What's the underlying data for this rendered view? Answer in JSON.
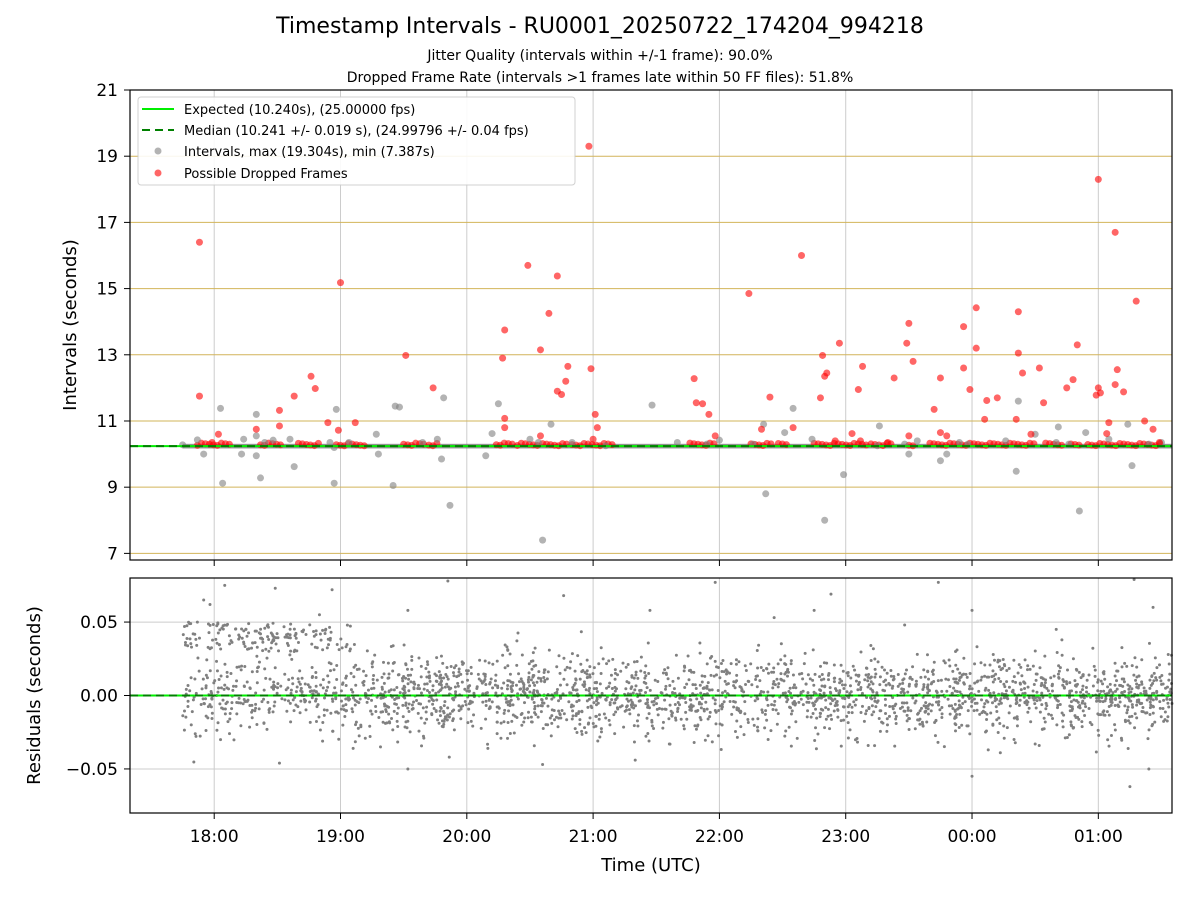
{
  "title": "Timestamp Intervals - RU0001_20250722_174204_994218",
  "subtitle_1": "Jitter Quality (intervals within +/-1 frame): 90.0%",
  "subtitle_2": "Dropped Frame Rate (intervals >1 frames late within 50 FF files): 51.8%",
  "colors": {
    "expected": "#00ee00",
    "median": "#008000",
    "intervals": "#808080",
    "dropped": "#ff0000",
    "gold_grid": "#d2b45a",
    "grid": "#cccccc"
  },
  "chart_data": [
    {
      "type": "scatter",
      "ylabel": "Intervals (seconds)",
      "ylim": [
        6.8,
        21
      ],
      "y_ticks": [
        "7",
        "9",
        "11",
        "13",
        "15",
        "17",
        "19",
        "21"
      ],
      "grid": true,
      "legend_position": "top-left",
      "legend": [
        "Expected (10.240s), (25.00000 fps)",
        "Median (10.241 +/- 0.019 s), (24.99796 +/- 0.04 fps)",
        "Intervals, max (19.304s), min (7.387s)",
        "Possible Dropped Frames"
      ],
      "expected_value": 10.24,
      "median_value": 10.241,
      "series": [
        {
          "points": [
            [
              "17:45",
              10.28
            ],
            [
              "17:52",
              10.43
            ],
            [
              "17:55",
              10.0
            ],
            [
              "18:03",
              11.38
            ],
            [
              "18:04",
              9.12
            ],
            [
              "18:13",
              10.0
            ],
            [
              "18:14",
              10.45
            ],
            [
              "18:20",
              11.2
            ],
            [
              "18:20",
              10.55
            ],
            [
              "18:20",
              9.95
            ],
            [
              "18:22",
              9.28
            ],
            [
              "18:24",
              10.35
            ],
            [
              "18:28",
              10.42
            ],
            [
              "18:36",
              10.45
            ],
            [
              "18:38",
              9.62
            ],
            [
              "18:55",
              10.35
            ],
            [
              "18:57",
              9.12
            ],
            [
              "18:58",
              11.35
            ],
            [
              "18:57",
              10.2
            ],
            [
              "19:04",
              10.35
            ],
            [
              "19:17",
              10.6
            ],
            [
              "19:18",
              10.0
            ],
            [
              "19:25",
              9.05
            ],
            [
              "19:26",
              11.45
            ],
            [
              "19:28",
              11.42
            ],
            [
              "19:39",
              10.35
            ],
            [
              "19:46",
              10.45
            ],
            [
              "19:49",
              11.7
            ],
            [
              "19:48",
              9.85
            ],
            [
              "19:52",
              8.45
            ],
            [
              "20:09",
              9.95
            ],
            [
              "20:12",
              10.62
            ],
            [
              "20:15",
              11.52
            ],
            [
              "20:30",
              10.45
            ],
            [
              "20:34",
              10.35
            ],
            [
              "20:36",
              7.4
            ],
            [
              "20:40",
              10.9
            ],
            [
              "20:50",
              10.35
            ],
            [
              "21:06",
              10.25
            ],
            [
              "21:28",
              11.48
            ],
            [
              "21:40",
              10.35
            ],
            [
              "21:54",
              10.3
            ],
            [
              "22:00",
              10.42
            ],
            [
              "22:16",
              10.3
            ],
            [
              "22:21",
              10.9
            ],
            [
              "22:22",
              8.8
            ],
            [
              "22:31",
              10.65
            ],
            [
              "22:35",
              11.38
            ],
            [
              "22:44",
              10.45
            ],
            [
              "22:50",
              8.0
            ],
            [
              "22:59",
              9.38
            ],
            [
              "23:16",
              10.85
            ],
            [
              "23:15",
              10.25
            ],
            [
              "23:28",
              10.3
            ],
            [
              "23:30",
              10.0
            ],
            [
              "23:34",
              10.4
            ],
            [
              "23:45",
              9.8
            ],
            [
              "23:48",
              10.0
            ],
            [
              "23:54",
              10.35
            ],
            [
              "23:58",
              10.3
            ],
            [
              "00:16",
              10.4
            ],
            [
              "00:22",
              11.6
            ],
            [
              "00:21",
              9.48
            ],
            [
              "00:30",
              10.6
            ],
            [
              "00:40",
              10.35
            ],
            [
              "00:41",
              10.82
            ],
            [
              "00:46",
              10.3
            ],
            [
              "00:51",
              8.28
            ],
            [
              "00:54",
              10.65
            ],
            [
              "01:05",
              10.45
            ],
            [
              "01:14",
              10.9
            ],
            [
              "01:16",
              9.65
            ],
            [
              "01:24",
              10.3
            ],
            [
              "01:30",
              10.35
            ]
          ]
        },
        {
          "points": [
            [
              "17:53",
              16.4
            ],
            [
              "17:53",
              11.75
            ],
            [
              "17:59",
              10.35
            ],
            [
              "18:02",
              10.6
            ],
            [
              "18:20",
              10.75
            ],
            [
              "18:31",
              11.32
            ],
            [
              "18:31",
              10.85
            ],
            [
              "18:38",
              11.75
            ],
            [
              "18:46",
              12.35
            ],
            [
              "18:48",
              11.98
            ],
            [
              "18:54",
              10.95
            ],
            [
              "19:00",
              15.18
            ],
            [
              "18:59",
              10.72
            ],
            [
              "19:07",
              10.95
            ],
            [
              "19:31",
              12.98
            ],
            [
              "19:44",
              12.0
            ],
            [
              "20:17",
              12.9
            ],
            [
              "20:18",
              13.75
            ],
            [
              "20:18",
              11.08
            ],
            [
              "20:18",
              10.8
            ],
            [
              "20:29",
              15.7
            ],
            [
              "20:35",
              13.15
            ],
            [
              "20:35",
              10.55
            ],
            [
              "20:39",
              14.25
            ],
            [
              "20:43",
              11.9
            ],
            [
              "20:43",
              15.38
            ],
            [
              "20:45",
              11.8
            ],
            [
              "20:47",
              12.2
            ],
            [
              "20:48",
              12.65
            ],
            [
              "20:58",
              19.3
            ],
            [
              "20:59",
              12.58
            ],
            [
              "21:01",
              11.2
            ],
            [
              "21:02",
              10.8
            ],
            [
              "21:00",
              10.45
            ],
            [
              "21:48",
              12.28
            ],
            [
              "21:49",
              11.55
            ],
            [
              "21:52",
              11.52
            ],
            [
              "21:55",
              11.2
            ],
            [
              "21:58",
              10.55
            ],
            [
              "22:14",
              14.85
            ],
            [
              "22:20",
              10.75
            ],
            [
              "22:24",
              11.72
            ],
            [
              "22:35",
              10.8
            ],
            [
              "22:39",
              16.0
            ],
            [
              "22:48",
              11.7
            ],
            [
              "22:49",
              12.98
            ],
            [
              "22:50",
              12.35
            ],
            [
              "22:51",
              12.45
            ],
            [
              "22:55",
              10.4
            ],
            [
              "22:57",
              13.35
            ],
            [
              "23:03",
              10.62
            ],
            [
              "23:06",
              11.95
            ],
            [
              "23:08",
              12.65
            ],
            [
              "23:07",
              10.4
            ],
            [
              "23:20",
              10.35
            ],
            [
              "23:23",
              12.3
            ],
            [
              "23:29",
              13.35
            ],
            [
              "23:30",
              13.95
            ],
            [
              "23:32",
              12.8
            ],
            [
              "23:30",
              10.55
            ],
            [
              "23:42",
              11.35
            ],
            [
              "23:45",
              12.3
            ],
            [
              "23:45",
              10.65
            ],
            [
              "23:48",
              10.55
            ],
            [
              "23:56",
              12.6
            ],
            [
              "23:56",
              13.85
            ],
            [
              "23:59",
              11.95
            ],
            [
              "00:02",
              14.42
            ],
            [
              "00:02",
              13.2
            ],
            [
              "00:06",
              11.05
            ],
            [
              "00:07",
              11.62
            ],
            [
              "00:12",
              11.7
            ],
            [
              "00:21",
              11.05
            ],
            [
              "00:22",
              13.05
            ],
            [
              "00:22",
              14.3
            ],
            [
              "00:24",
              12.45
            ],
            [
              "00:28",
              10.6
            ],
            [
              "00:32",
              12.6
            ],
            [
              "00:34",
              11.55
            ],
            [
              "00:45",
              12.0
            ],
            [
              "00:48",
              12.25
            ],
            [
              "00:50",
              13.3
            ],
            [
              "00:59",
              11.78
            ],
            [
              "01:00",
              18.3
            ],
            [
              "01:00",
              12.0
            ],
            [
              "01:01",
              11.85
            ],
            [
              "01:04",
              10.62
            ],
            [
              "01:05",
              10.95
            ],
            [
              "01:08",
              16.7
            ],
            [
              "01:08",
              12.1
            ],
            [
              "01:09",
              12.55
            ],
            [
              "01:12",
              11.88
            ],
            [
              "01:18",
              14.62
            ],
            [
              "01:22",
              11.0
            ],
            [
              "01:26",
              10.75
            ],
            [
              "01:29",
              10.35
            ]
          ]
        }
      ]
    },
    {
      "type": "scatter",
      "xlabel": "Time (UTC)",
      "ylabel": "Residuals (seconds)",
      "x_ticks": [
        "18:00",
        "19:00",
        "20:00",
        "21:00",
        "22:00",
        "23:00",
        "00:00",
        "01:00"
      ],
      "y_ticks": [
        "−0.05",
        "0.00",
        "0.05"
      ],
      "ylim": [
        -0.08,
        0.08
      ],
      "grid": true,
      "x_range": [
        "17:20",
        "01:35"
      ],
      "series": [
        {
          "points": [
            [
              "17:50",
              0.042
            ],
            [
              "17:52",
              0.05
            ],
            [
              "17:55",
              0.065
            ],
            [
              "17:58",
              0.062
            ],
            [
              "17:51",
              -0.026
            ],
            [
              "18:03",
              -0.03
            ],
            [
              "18:05",
              0.075
            ],
            [
              "18:13",
              0.02
            ],
            [
              "18:22",
              0.042
            ],
            [
              "18:28",
              0.038
            ],
            [
              "18:31",
              -0.046
            ],
            [
              "18:29",
              0.073
            ],
            [
              "18:38",
              0.03
            ],
            [
              "18:50",
              0.055
            ],
            [
              "18:56",
              0.072
            ],
            [
              "18:59",
              -0.012
            ],
            [
              "19:06",
              -0.036
            ],
            [
              "19:19",
              -0.035
            ],
            [
              "19:32",
              0.058
            ],
            [
              "19:32",
              -0.05
            ],
            [
              "19:51",
              0.078
            ],
            [
              "20:10",
              -0.036
            ],
            [
              "20:36",
              -0.047
            ],
            [
              "20:46",
              0.068
            ],
            [
              "21:08",
              -0.02
            ],
            [
              "21:20",
              -0.044
            ],
            [
              "21:27",
              0.058
            ],
            [
              "21:48",
              -0.032
            ],
            [
              "21:58",
              0.077
            ],
            [
              "22:26",
              0.053
            ],
            [
              "22:45",
              0.058
            ],
            [
              "22:53",
              0.069
            ],
            [
              "23:28",
              0.048
            ],
            [
              "23:44",
              0.077
            ],
            [
              "00:00",
              -0.055
            ],
            [
              "00:00",
              0.058
            ],
            [
              "00:30",
              -0.033
            ],
            [
              "00:40",
              0.045
            ],
            [
              "01:15",
              -0.062
            ],
            [
              "01:17",
              0.079
            ],
            [
              "01:24",
              -0.05
            ],
            [
              "01:26",
              0.06
            ]
          ]
        }
      ]
    }
  ]
}
